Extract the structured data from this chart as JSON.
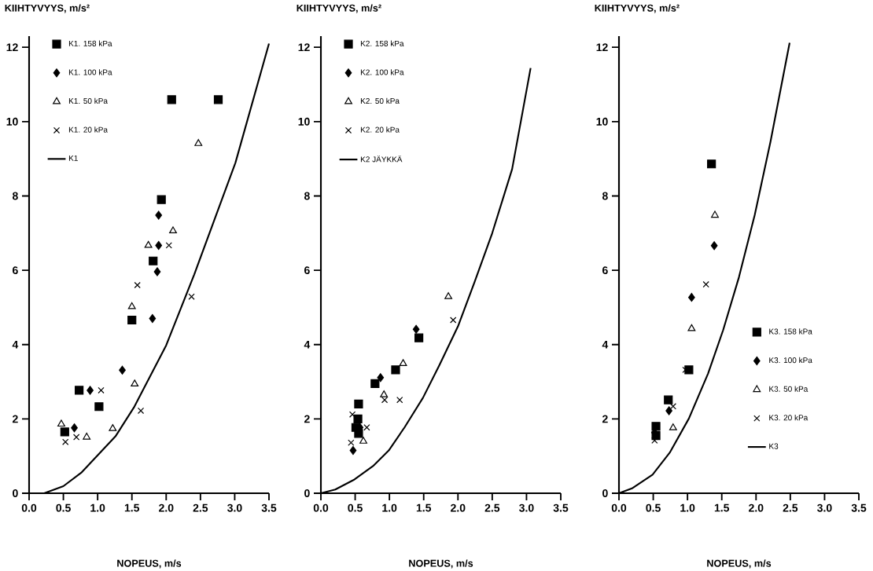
{
  "chart_data": [
    {
      "type": "scatter",
      "ylabel": "KIIHTYVYYS, m/s²",
      "xlabel": "NOPEUS, m/s",
      "xlim": [
        0,
        3.5
      ],
      "ylim": [
        0,
        12.3
      ],
      "xticks": [
        {
          "value": 0,
          "label": "0.0"
        },
        {
          "value": 0.5,
          "label": "0.5"
        },
        {
          "value": 1,
          "label": "1.0"
        },
        {
          "value": 1.5,
          "label": "1.5"
        },
        {
          "value": 2,
          "label": "2.0"
        },
        {
          "value": 2.5,
          "label": "2.5"
        },
        {
          "value": 3,
          "label": "3.0"
        },
        {
          "value": 3.5,
          "label": "3.5"
        }
      ],
      "yticks": [
        0,
        2,
        4,
        6,
        8,
        10,
        12
      ],
      "legend": "top left",
      "series": [
        {
          "name": "K1. 158 kPa",
          "color": "#000000",
          "marker": "square",
          "x": [
            0.52,
            0.73,
            1.02,
            1.5,
            1.81,
            1.93,
            2.08,
            2.76
          ],
          "values": [
            1.65,
            2.77,
            2.33,
            4.66,
            6.25,
            7.9,
            10.59,
            10.59
          ]
        },
        {
          "name": "K1. 100 kPa",
          "color": "#000000",
          "marker": "diamond",
          "x": [
            0.66,
            0.89,
            1.36,
            1.8,
            1.87,
            1.89,
            1.89
          ],
          "values": [
            1.76,
            2.77,
            3.31,
            4.7,
            5.96,
            6.67,
            7.48
          ]
        },
        {
          "name": "K1. 50 kPa",
          "color": "#000000",
          "marker": "triangle",
          "x": [
            0.47,
            0.84,
            1.22,
            1.54,
            1.5,
            1.74,
            2.1,
            2.47
          ],
          "values": [
            1.86,
            1.51,
            1.74,
            2.94,
            5.02,
            6.67,
            7.06,
            9.41
          ]
        },
        {
          "name": "K1. 20 kPa",
          "color": "#000000",
          "marker": "cross",
          "x": [
            0.53,
            0.69,
            1.05,
            1.58,
            1.63,
            2.04,
            2.37
          ],
          "values": [
            1.38,
            1.51,
            2.77,
            5.6,
            2.22,
            6.67,
            5.29
          ]
        },
        {
          "name": "K1",
          "type": "line",
          "color": "#000000",
          "marker": "none",
          "x": [
            0.22,
            0.5,
            0.76,
            1.26,
            1.53,
            2.0,
            2.41,
            3.01,
            3.5
          ],
          "values": [
            0,
            0.19,
            0.55,
            1.53,
            2.31,
            3.98,
            5.89,
            8.89,
            12.1
          ]
        }
      ]
    },
    {
      "type": "scatter",
      "ylabel": "KIIHTYVYYS, m/s²",
      "xlabel": "NOPEUS, m/s",
      "xlim": [
        0,
        3.5
      ],
      "ylim": [
        0,
        12.3
      ],
      "xticks": [
        {
          "value": 0,
          "label": "0.0"
        },
        {
          "value": 0.5,
          "label": "0.5"
        },
        {
          "value": 1,
          "label": "1.0"
        },
        {
          "value": 1.5,
          "label": "1.5"
        },
        {
          "value": 2,
          "label": "2.0"
        },
        {
          "value": 2.5,
          "label": "2.5"
        },
        {
          "value": 3,
          "label": "3.0"
        },
        {
          "value": 3.5,
          "label": "3.5"
        }
      ],
      "yticks": [
        0,
        2,
        4,
        6,
        8,
        10,
        12
      ],
      "legend": "top left",
      "series": [
        {
          "name": "K2. 158 kPa",
          "color": "#000000",
          "marker": "square",
          "x": [
            0.55,
            0.51,
            0.55,
            0.54,
            0.79,
            1.09,
            1.43
          ],
          "values": [
            2.4,
            1.77,
            1.61,
            2.0,
            2.95,
            3.32,
            4.18
          ]
        },
        {
          "name": "K2. 100 kPa",
          "color": "#000000",
          "marker": "diamond",
          "x": [
            0.47,
            0.57,
            0.87,
            1.39
          ],
          "values": [
            1.15,
            1.77,
            3.11,
            4.41
          ]
        },
        {
          "name": "K2. 50 kPa",
          "color": "#000000",
          "marker": "triangle",
          "x": [
            0.62,
            0.92,
            1.2,
            1.86
          ],
          "values": [
            1.4,
            2.65,
            3.49,
            5.29
          ]
        },
        {
          "name": "K2. 20 kPa",
          "color": "#000000",
          "marker": "cross",
          "x": [
            0.44,
            0.46,
            0.67,
            0.93,
            1.15,
            1.93
          ],
          "values": [
            1.36,
            2.12,
            1.77,
            2.51,
            2.51,
            4.66
          ]
        },
        {
          "name": "K2 JÄYKKÄ",
          "type": "line",
          "color": "#000000",
          "marker": "none",
          "x": [
            0,
            0.21,
            0.49,
            0.76,
            0.99,
            1.22,
            1.49,
            1.73,
            2.0,
            2.24,
            2.5,
            2.79,
            3.06
          ],
          "values": [
            0,
            0.1,
            0.37,
            0.73,
            1.15,
            1.77,
            2.57,
            3.45,
            4.49,
            5.67,
            7.0,
            8.72,
            11.44
          ]
        }
      ]
    },
    {
      "type": "scatter",
      "ylabel": "KIIHTYVYYS, m/s²",
      "xlabel": "NOPEUS, m/s",
      "xlim": [
        0,
        3.5
      ],
      "ylim": [
        0,
        12.3
      ],
      "xticks": [
        {
          "value": 0,
          "label": "0.0"
        },
        {
          "value": 0.5,
          "label": "0.5"
        },
        {
          "value": 1,
          "label": "1.0"
        },
        {
          "value": 1.5,
          "label": "1.5"
        },
        {
          "value": 2,
          "label": "2.0"
        },
        {
          "value": 2.5,
          "label": "2.5"
        },
        {
          "value": 3,
          "label": "3.0"
        },
        {
          "value": 3.5,
          "label": "3.5"
        }
      ],
      "yticks": [
        0,
        2,
        4,
        6,
        8,
        10,
        12
      ],
      "legend": "bottom right",
      "series": [
        {
          "name": "K3. 158 kPa",
          "color": "#000000",
          "marker": "square",
          "x": [
            0.54,
            0.54,
            0.72,
            1.02,
            1.35
          ],
          "values": [
            1.8,
            1.55,
            2.51,
            3.32,
            8.86
          ]
        },
        {
          "name": "K3. 100 kPa",
          "color": "#000000",
          "marker": "diamond",
          "x": [
            0.52,
            0.73,
            1.06,
            1.39
          ],
          "values": [
            1.63,
            2.22,
            5.27,
            6.66
          ]
        },
        {
          "name": "K3. 50 kPa",
          "color": "#000000",
          "marker": "triangle",
          "x": [
            0.79,
            1.06,
            1.4
          ],
          "values": [
            1.76,
            4.43,
            7.48
          ]
        },
        {
          "name": "K3. 20 kPa",
          "color": "#000000",
          "marker": "cross",
          "x": [
            0.52,
            0.79,
            0.97,
            1.27
          ],
          "values": [
            1.42,
            2.34,
            3.32,
            5.62
          ]
        },
        {
          "name": "K3",
          "type": "line",
          "color": "#000000",
          "marker": "none",
          "x": [
            0,
            0.19,
            0.49,
            0.74,
            1.02,
            1.3,
            1.52,
            1.75,
            1.98,
            2.21,
            2.49
          ],
          "values": [
            0,
            0.13,
            0.5,
            1.09,
            2.01,
            3.22,
            4.39,
            5.81,
            7.48,
            9.45,
            12.12
          ]
        }
      ]
    }
  ]
}
